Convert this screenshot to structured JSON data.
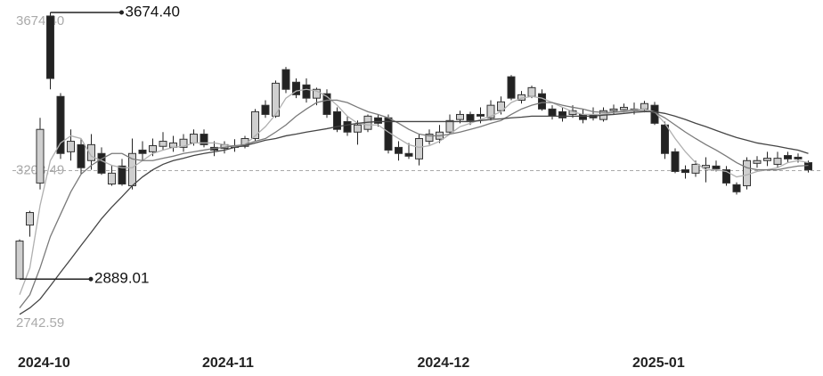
{
  "chart_data": {
    "type": "candlestick",
    "categories": [
      "2024-10",
      null,
      null,
      null,
      null,
      null,
      null,
      null,
      null,
      null,
      null,
      null,
      null,
      null,
      null,
      null,
      null,
      null,
      "2024-11",
      null,
      null,
      null,
      null,
      null,
      null,
      null,
      null,
      null,
      null,
      null,
      null,
      null,
      null,
      null,
      null,
      null,
      null,
      null,
      null,
      "2024-12",
      null,
      null,
      null,
      null,
      null,
      null,
      null,
      null,
      null,
      null,
      null,
      null,
      null,
      null,
      null,
      null,
      null,
      null,
      null,
      null,
      "2025-01",
      null,
      null,
      null,
      null,
      null,
      null,
      null,
      null,
      null,
      null,
      null,
      null,
      null,
      null,
      null,
      null,
      null
    ],
    "open": [
      2890,
      3048,
      3172,
      3664,
      3427,
      3264,
      3285,
      3238,
      3259,
      3169,
      3222,
      3164,
      3269,
      3264,
      3280,
      3277,
      3277,
      3290,
      3316,
      3277,
      3274,
      3277,
      3280,
      3303,
      3401,
      3369,
      3506,
      3469,
      3461,
      3422,
      3435,
      3382,
      3353,
      3322,
      3330,
      3364,
      3364,
      3277,
      3259,
      3243,
      3295,
      3301,
      3322,
      3359,
      3374,
      3374,
      3364,
      3385,
      3485,
      3416,
      3427,
      3435,
      3390,
      3382,
      3374,
      3374,
      3374,
      3359,
      3385,
      3388,
      3390,
      3390,
      3401,
      3343,
      3264,
      3211,
      3201,
      3217,
      3222,
      3211,
      3167,
      3164,
      3230,
      3238,
      3227,
      3253,
      3248,
      3232
    ],
    "high": [
      3006,
      3090,
      3364,
      3674.4,
      3437,
      3330,
      3303,
      3316,
      3277,
      3224,
      3243,
      3303,
      3295,
      3303,
      3322,
      3311,
      3316,
      3330,
      3330,
      3295,
      3295,
      3301,
      3311,
      3390,
      3416,
      3474,
      3514,
      3480,
      3480,
      3453,
      3448,
      3395,
      3369,
      3356,
      3374,
      3374,
      3374,
      3295,
      3290,
      3316,
      3330,
      3343,
      3374,
      3385,
      3382,
      3395,
      3416,
      3427,
      3490,
      3443,
      3459,
      3448,
      3401,
      3395,
      3401,
      3390,
      3395,
      3395,
      3403,
      3406,
      3409,
      3414,
      3411,
      3353,
      3274,
      3224,
      3238,
      3248,
      3238,
      3222,
      3174,
      3248,
      3251,
      3264,
      3264,
      3264,
      3259,
      3238
    ],
    "low": [
      2889.01,
      3014,
      3153,
      3448,
      3243,
      3238,
      3198,
      3211,
      3196,
      3164,
      3164,
      3153,
      3238,
      3251,
      3269,
      3264,
      3264,
      3282,
      3277,
      3251,
      3259,
      3264,
      3274,
      3295,
      3364,
      3364,
      3437,
      3422,
      3409,
      3401,
      3364,
      3322,
      3311,
      3285,
      3322,
      3338,
      3259,
      3238,
      3243,
      3224,
      3285,
      3290,
      3316,
      3348,
      3343,
      3348,
      3356,
      3374,
      3416,
      3406,
      3422,
      3385,
      3359,
      3353,
      3364,
      3348,
      3356,
      3353,
      3374,
      3380,
      3374,
      3380,
      3343,
      3243,
      3201,
      3185,
      3190,
      3174,
      3206,
      3164,
      3138,
      3153,
      3217,
      3222,
      3217,
      3232,
      3232,
      3203
    ],
    "close": [
      3001,
      3085,
      3330,
      3480,
      3259,
      3295,
      3217,
      3285,
      3201,
      3201,
      3169,
      3259,
      3259,
      3282,
      3295,
      3290,
      3301,
      3316,
      3285,
      3269,
      3285,
      3282,
      3303,
      3382,
      3374,
      3466,
      3448,
      3432,
      3422,
      3448,
      3374,
      3330,
      3322,
      3343,
      3369,
      3348,
      3269,
      3259,
      3251,
      3303,
      3316,
      3322,
      3356,
      3374,
      3356,
      3369,
      3401,
      3411,
      3422,
      3432,
      3453,
      3390,
      3369,
      3364,
      3385,
      3359,
      3364,
      3385,
      3390,
      3395,
      3385,
      3406,
      3348,
      3259,
      3206,
      3203,
      3227,
      3224,
      3214,
      3172,
      3146,
      3238,
      3238,
      3245,
      3245,
      3243,
      3243,
      3211
    ],
    "lines": [
      {
        "color": "#b0b0b0",
        "values": [
          2843,
          2922,
          3106,
          3238,
          3290,
          3311,
          3303,
          3251,
          3238,
          3224,
          3217,
          3217,
          3238,
          3259,
          3269,
          3277,
          3280,
          3290,
          3290,
          3290,
          3285,
          3280,
          3285,
          3311,
          3338,
          3374,
          3422,
          3443,
          3448,
          3443,
          3427,
          3401,
          3369,
          3348,
          3343,
          3343,
          3322,
          3303,
          3285,
          3277,
          3282,
          3295,
          3316,
          3338,
          3348,
          3359,
          3369,
          3382,
          3409,
          3422,
          3427,
          3422,
          3409,
          3395,
          3382,
          3374,
          3374,
          3374,
          3380,
          3385,
          3388,
          3390,
          3382,
          3348,
          3303,
          3264,
          3232,
          3211,
          3211,
          3206,
          3190,
          3196,
          3206,
          3211,
          3217,
          3232,
          3238,
          3232
        ]
      },
      {
        "color": "#7a7a7a",
        "values": [
          2804,
          2843,
          2922,
          3014,
          3080,
          3146,
          3198,
          3224,
          3243,
          3259,
          3259,
          3243,
          3238,
          3238,
          3245,
          3251,
          3259,
          3264,
          3269,
          3274,
          3277,
          3282,
          3285,
          3295,
          3303,
          3322,
          3343,
          3369,
          3390,
          3409,
          3416,
          3416,
          3409,
          3395,
          3382,
          3374,
          3364,
          3348,
          3330,
          3316,
          3311,
          3311,
          3316,
          3322,
          3330,
          3338,
          3348,
          3356,
          3374,
          3390,
          3401,
          3409,
          3409,
          3401,
          3395,
          3390,
          3382,
          3380,
          3380,
          3382,
          3385,
          3385,
          3380,
          3364,
          3343,
          3322,
          3303,
          3285,
          3269,
          3251,
          3232,
          3217,
          3211,
          3211,
          3211,
          3217,
          3222,
          3224
        ]
      },
      {
        "color": "#454545",
        "values": [
          2785,
          2804,
          2830,
          2869,
          2909,
          2948,
          2988,
          3027,
          3067,
          3101,
          3132,
          3164,
          3190,
          3211,
          3227,
          3238,
          3245,
          3253,
          3259,
          3264,
          3269,
          3277,
          3282,
          3290,
          3298,
          3303,
          3311,
          3316,
          3322,
          3327,
          3332,
          3338,
          3343,
          3348,
          3351,
          3353,
          3353,
          3353,
          3353,
          3353,
          3353,
          3353,
          3353,
          3353,
          3353,
          3356,
          3359,
          3361,
          3364,
          3366,
          3369,
          3369,
          3369,
          3369,
          3369,
          3369,
          3369,
          3372,
          3374,
          3377,
          3380,
          3382,
          3382,
          3377,
          3369,
          3359,
          3348,
          3338,
          3327,
          3316,
          3306,
          3298,
          3290,
          3285,
          3280,
          3274,
          3269,
          3259
        ]
      }
    ],
    "ylim": [
      2742.59,
      3674.4
    ],
    "yticks": [
      {
        "value": 3674.4,
        "label": "3674.40"
      },
      {
        "value": 3208.49,
        "label": "3208.49"
      },
      {
        "value": 2742.59,
        "label": "2742.59"
      }
    ],
    "annotations": [
      {
        "label": "3674.40",
        "value": 3674.4,
        "index": 3
      },
      {
        "label": "2889.01",
        "value": 2889.01,
        "index": 0
      }
    ],
    "up_color": "#cfcfcf",
    "down_color": "#222222"
  }
}
